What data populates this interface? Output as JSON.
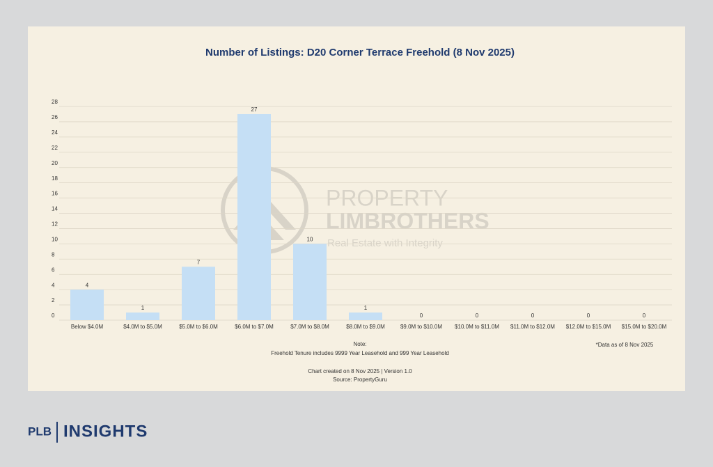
{
  "chart_data": {
    "type": "bar",
    "title": "Number of Listings: D20 Corner Terrace Freehold (8 Nov 2025)",
    "categories": [
      "Below $4.0M",
      "$4.0M to $5.0M",
      "$5.0M to $6.0M",
      "$6.0M to $7.0M",
      "$7.0M to $8.0M",
      "$8.0M to $9.0M",
      "$9.0M to $10.0M",
      "$10.0M to $11.0M",
      "$11.0M to $12.0M",
      "$12.0M to $15.0M",
      "$15.0M to $20.0M"
    ],
    "values": [
      4,
      1,
      7,
      27,
      10,
      1,
      0,
      0,
      0,
      0,
      0
    ],
    "color": "#c5dff5",
    "ylim": [
      0,
      28
    ],
    "yticks": [
      0,
      2,
      4,
      6,
      8,
      10,
      12,
      14,
      16,
      18,
      20,
      22,
      24,
      26,
      28
    ],
    "grid": true,
    "note_title": "Note:",
    "note": "Freehold Tenure includes 9999 Year Leasehold and 999 Year Leasehold",
    "credit": "Chart created on 8 Nov 2025 | Version 1.0",
    "source": "Source: PropertyGuru",
    "footnote": "*Data as of 8 Nov 2025"
  },
  "watermark": {
    "line1": "PROPERTY",
    "line2": "LIMBROTHERS",
    "tagline": "Real Estate with Integrity"
  },
  "brand": {
    "left": "PLB",
    "right": "INSIGHTS"
  }
}
